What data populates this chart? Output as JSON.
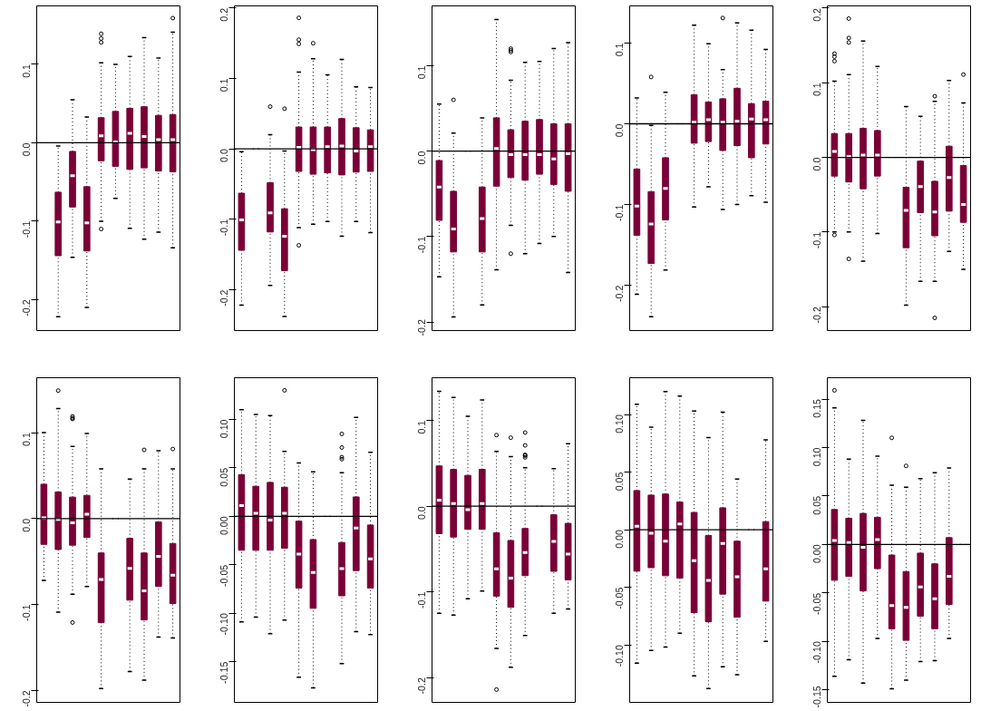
{
  "chart_data": [
    {
      "type": "box",
      "categories": [
        null,
        null,
        null,
        null,
        null,
        null,
        null,
        null,
        null,
        null
      ],
      "ylim": [
        -0.2395,
        0.1746
      ],
      "yticks": [
        {
          "value": -0.2,
          "label": "-0.2"
        },
        {
          "value": -0.1,
          "label": "-0.1"
        },
        {
          "value": 0,
          "label": "0.0"
        },
        {
          "value": 0.1,
          "label": "0.1"
        }
      ],
      "tick_labels": "y",
      "grid": false,
      "ref_lines": [
        {
          "axis": "y",
          "value": 0
        }
      ],
      "series": [
        {
          "color": "#7a0036",
          "boxes": [
            {
              "low": 0,
              "q1": 0,
              "median": 0,
              "q3": 0,
              "high": 0
            },
            {
              "low": -0.222,
              "q1": -0.144,
              "median": -0.101,
              "q3": -0.063,
              "high": -0.004
            },
            {
              "low": -0.146,
              "q1": -0.082,
              "median": -0.042,
              "q3": -0.011,
              "high": 0.055
            },
            {
              "low": -0.21,
              "q1": -0.138,
              "median": -0.102,
              "q3": -0.056,
              "high": 0.033
            },
            {
              "low": -0.1,
              "q1": -0.023,
              "median": 0.009,
              "q3": 0.032,
              "high": 0.102,
              "outliers": [
                0.128,
                0.133,
                0.139,
                -0.11
              ]
            },
            {
              "low": -0.071,
              "q1": -0.03,
              "median": 0.001,
              "q3": 0.04,
              "high": 0.1
            },
            {
              "low": -0.109,
              "q1": -0.034,
              "median": 0.012,
              "q3": 0.044,
              "high": 0.11
            },
            {
              "low": -0.123,
              "q1": -0.032,
              "median": 0.008,
              "q3": 0.046,
              "high": 0.134
            },
            {
              "low": -0.114,
              "q1": -0.036,
              "median": 0.004,
              "q3": 0.035,
              "high": 0.108
            },
            {
              "low": -0.134,
              "q1": -0.037,
              "median": 0.004,
              "q3": 0.036,
              "high": 0.141,
              "outliers": [
                0.159
              ]
            }
          ]
        }
      ]
    },
    {
      "type": "box",
      "categories": [
        null,
        null,
        null,
        null,
        null,
        null,
        null,
        null,
        null,
        null
      ],
      "ylim": [
        -0.258,
        0.203
      ],
      "yticks": [
        {
          "value": -0.2,
          "label": "-0.2"
        },
        {
          "value": -0.1,
          "label": "-0.1"
        },
        {
          "value": 0,
          "label": "0.0"
        },
        {
          "value": 0.1,
          "label": "0.1"
        },
        {
          "value": 0.2,
          "label": "0.2"
        }
      ],
      "tick_labels": "y",
      "grid": false,
      "ref_lines": [
        {
          "axis": "y",
          "value": 0
        }
      ],
      "series": [
        {
          "color": "#7a0036",
          "boxes": [
            {
              "low": -0.222,
              "q1": -0.144,
              "median": -0.101,
              "q3": -0.063,
              "high": -0.004
            },
            {
              "low": 0,
              "q1": 0,
              "median": 0,
              "q3": 0,
              "high": 0
            },
            {
              "low": -0.194,
              "q1": -0.118,
              "median": -0.091,
              "q3": -0.048,
              "high": 0.02,
              "outliers": [
                0.06
              ]
            },
            {
              "low": -0.238,
              "q1": -0.173,
              "median": -0.124,
              "q3": -0.085,
              "high": -0.003,
              "outliers": [
                0.057
              ]
            },
            {
              "low": -0.112,
              "q1": -0.032,
              "median": 0.002,
              "q3": 0.031,
              "high": 0.109,
              "outliers": [
                0.149,
                0.155,
                0.186,
                -0.137
              ]
            },
            {
              "low": -0.107,
              "q1": -0.036,
              "median": -0.001,
              "q3": 0.031,
              "high": 0.128,
              "outliers": [
                0.15
              ]
            },
            {
              "low": -0.103,
              "q1": -0.034,
              "median": 0.003,
              "q3": 0.031,
              "high": 0.105
            },
            {
              "low": -0.124,
              "q1": -0.037,
              "median": 0.004,
              "q3": 0.043,
              "high": 0.127
            },
            {
              "low": -0.103,
              "q1": -0.033,
              "median": -0.003,
              "q3": 0.03,
              "high": 0.088
            },
            {
              "low": -0.119,
              "q1": -0.032,
              "median": 0.003,
              "q3": 0.027,
              "high": 0.087
            }
          ]
        }
      ]
    },
    {
      "type": "box",
      "categories": [
        null,
        null,
        null,
        null,
        null,
        null,
        null,
        null,
        null,
        null
      ],
      "ylim": [
        -0.21,
        0.17
      ],
      "yticks": [
        {
          "value": -0.2,
          "label": "-0.2"
        },
        {
          "value": -0.1,
          "label": "-0.1"
        },
        {
          "value": 0,
          "label": "0.0"
        },
        {
          "value": 0.1,
          "label": "0.1"
        }
      ],
      "tick_labels": "y",
      "grid": false,
      "ref_lines": [
        {
          "axis": "y",
          "value": 0
        }
      ],
      "series": [
        {
          "color": "#7a0036",
          "boxes": [
            {
              "low": -0.147,
              "q1": -0.081,
              "median": -0.042,
              "q3": -0.011,
              "high": 0.055
            },
            {
              "low": -0.194,
              "q1": -0.118,
              "median": -0.091,
              "q3": -0.047,
              "high": 0.021,
              "outliers": [
                0.06
              ]
            },
            {
              "low": 0,
              "q1": 0,
              "median": 0,
              "q3": 0,
              "high": 0
            },
            {
              "low": -0.18,
              "q1": -0.118,
              "median": -0.079,
              "q3": -0.042,
              "high": 0.039
            },
            {
              "low": -0.139,
              "q1": -0.041,
              "median": 0.003,
              "q3": 0.039,
              "high": 0.154
            },
            {
              "low": -0.087,
              "q1": -0.031,
              "median": -0.004,
              "q3": 0.025,
              "high": 0.083,
              "outliers": [
                0.116,
                0.118,
                0.12,
                -0.12
              ]
            },
            {
              "low": -0.12,
              "q1": -0.034,
              "median": -0.004,
              "q3": 0.035,
              "high": 0.104
            },
            {
              "low": -0.108,
              "q1": -0.027,
              "median": -0.004,
              "q3": 0.037,
              "high": 0.105
            },
            {
              "low": -0.1,
              "q1": -0.039,
              "median": -0.009,
              "q3": 0.032,
              "high": 0.12
            },
            {
              "low": -0.142,
              "q1": -0.047,
              "median": -0.003,
              "q3": 0.032,
              "high": 0.127
            }
          ]
        }
      ]
    },
    {
      "type": "box",
      "categories": [
        null,
        null,
        null,
        null,
        null,
        null,
        null,
        null,
        null,
        null
      ],
      "ylim": [
        -0.256,
        0.146
      ],
      "yticks": [
        {
          "value": -0.2,
          "label": "-0.2"
        },
        {
          "value": -0.1,
          "label": "-0.1"
        },
        {
          "value": 0,
          "label": "0.0"
        },
        {
          "value": 0.1,
          "label": "0.1"
        }
      ],
      "tick_labels": "y",
      "grid": false,
      "ref_lines": [
        {
          "axis": "y",
          "value": 0
        }
      ],
      "series": [
        {
          "color": "#7a0036",
          "boxes": [
            {
              "low": -0.211,
              "q1": -0.138,
              "median": -0.102,
              "q3": -0.056,
              "high": 0.032
            },
            {
              "low": -0.239,
              "q1": -0.173,
              "median": -0.124,
              "q3": -0.084,
              "high": -0.002,
              "outliers": [
                0.058
              ]
            },
            {
              "low": -0.181,
              "q1": -0.119,
              "median": -0.08,
              "q3": -0.042,
              "high": 0.039
            },
            {
              "low": 0,
              "q1": 0,
              "median": 0,
              "q3": 0,
              "high": 0
            },
            {
              "low": -0.103,
              "q1": -0.024,
              "median": 0.002,
              "q3": 0.036,
              "high": 0.122
            },
            {
              "low": -0.078,
              "q1": -0.022,
              "median": 0.005,
              "q3": 0.027,
              "high": 0.099
            },
            {
              "low": -0.106,
              "q1": -0.033,
              "median": 0.002,
              "q3": 0.031,
              "high": 0.067,
              "outliers": [
                0.131
              ]
            },
            {
              "low": -0.1,
              "q1": -0.027,
              "median": 0.003,
              "q3": 0.044,
              "high": 0.125
            },
            {
              "low": -0.089,
              "q1": -0.042,
              "median": 0.006,
              "q3": 0.025,
              "high": 0.116
            },
            {
              "low": -0.097,
              "q1": -0.025,
              "median": 0.005,
              "q3": 0.028,
              "high": 0.092
            }
          ]
        }
      ]
    },
    {
      "type": "box",
      "categories": [
        null,
        null,
        null,
        null,
        null,
        null,
        null,
        null,
        null,
        null
      ],
      "ylim": [
        -0.232,
        0.203
      ],
      "yticks": [
        {
          "value": -0.2,
          "label": "-0.2"
        },
        {
          "value": -0.1,
          "label": "-0.1"
        },
        {
          "value": 0,
          "label": "0.0"
        },
        {
          "value": 0.1,
          "label": "0.1"
        },
        {
          "value": 0.2,
          "label": "0.2"
        }
      ],
      "tick_labels": "y",
      "grid": false,
      "ref_lines": [
        {
          "axis": "y",
          "value": 0
        }
      ],
      "series": [
        {
          "color": "#7a0036",
          "boxes": [
            {
              "low": -0.1,
              "q1": -0.025,
              "median": 0.008,
              "q3": 0.032,
              "high": 0.102,
              "outliers": [
                0.129,
                0.135,
                0.139,
                -0.104
              ]
            },
            {
              "low": -0.1,
              "q1": -0.033,
              "median": 0.001,
              "q3": 0.032,
              "high": 0.111,
              "outliers": [
                0.154,
                0.16,
                0.186,
                -0.136
              ]
            },
            {
              "low": -0.139,
              "q1": -0.042,
              "median": 0.003,
              "q3": 0.039,
              "high": 0.156
            },
            {
              "low": -0.102,
              "q1": -0.025,
              "median": 0.003,
              "q3": 0.036,
              "high": 0.122
            },
            {
              "low": 0,
              "q1": 0,
              "median": 0,
              "q3": 0,
              "high": 0
            },
            {
              "low": -0.198,
              "q1": -0.121,
              "median": -0.071,
              "q3": -0.04,
              "high": 0.068
            },
            {
              "low": -0.166,
              "q1": -0.074,
              "median": -0.039,
              "q3": -0.005,
              "high": 0.055
            },
            {
              "low": -0.166,
              "q1": -0.105,
              "median": -0.073,
              "q3": -0.032,
              "high": 0.075,
              "outliers": [
                0.082,
                -0.215
              ]
            },
            {
              "low": -0.126,
              "q1": -0.072,
              "median": -0.027,
              "q3": 0.015,
              "high": 0.103
            },
            {
              "low": -0.15,
              "q1": -0.087,
              "median": -0.063,
              "q3": -0.011,
              "high": 0.073,
              "outliers": [
                0.111
              ]
            }
          ]
        }
      ]
    },
    {
      "type": "box",
      "categories": [
        null,
        null,
        null,
        null,
        null,
        null,
        null,
        null,
        null,
        null
      ],
      "ylim": [
        -0.214,
        0.164
      ],
      "yticks": [
        {
          "value": -0.2,
          "label": "-0.2"
        },
        {
          "value": -0.1,
          "label": "-0.1"
        },
        {
          "value": 0,
          "label": "0.0"
        },
        {
          "value": 0.1,
          "label": "0.1"
        }
      ],
      "tick_labels": "y",
      "grid": false,
      "ref_lines": [
        {
          "axis": "y",
          "value": 0
        }
      ],
      "series": [
        {
          "color": "#7a0036",
          "boxes": [
            {
              "low": -0.072,
              "q1": -0.03,
              "median": 0.001,
              "q3": 0.04,
              "high": 0.1
            },
            {
              "low": -0.109,
              "q1": -0.036,
              "median": -0.001,
              "q3": 0.031,
              "high": 0.128,
              "outliers": [
                0.149
              ]
            },
            {
              "low": -0.088,
              "q1": -0.031,
              "median": -0.005,
              "q3": 0.025,
              "high": 0.084,
              "outliers": [
                0.116,
                0.117,
                0.119,
                -0.121
              ]
            },
            {
              "low": -0.079,
              "q1": -0.022,
              "median": 0.005,
              "q3": 0.027,
              "high": 0.099
            },
            {
              "low": -0.198,
              "q1": -0.121,
              "median": -0.071,
              "q3": -0.04,
              "high": 0.058
            },
            {
              "low": 0,
              "q1": 0,
              "median": 0,
              "q3": 0,
              "high": 0
            },
            {
              "low": -0.178,
              "q1": -0.095,
              "median": -0.058,
              "q3": -0.023,
              "high": 0.046
            },
            {
              "low": -0.188,
              "q1": -0.118,
              "median": -0.084,
              "q3": -0.04,
              "high": 0.058,
              "outliers": [
                0.08
              ]
            },
            {
              "low": -0.138,
              "q1": -0.079,
              "median": -0.044,
              "q3": -0.004,
              "high": 0.079
            },
            {
              "low": -0.139,
              "q1": -0.099,
              "median": -0.066,
              "q3": -0.029,
              "high": 0.058,
              "outliers": [
                0.081
              ]
            }
          ]
        }
      ]
    },
    {
      "type": "box",
      "categories": [
        null,
        null,
        null,
        null,
        null,
        null,
        null,
        null,
        null,
        null
      ],
      "ylim": [
        -0.192,
        0.143
      ],
      "yticks": [
        {
          "value": -0.15,
          "label": "-0.15"
        },
        {
          "value": -0.1,
          "label": "-0.10"
        },
        {
          "value": -0.05,
          "label": "-0.05"
        },
        {
          "value": 0,
          "label": "0.00"
        },
        {
          "value": 0.05,
          "label": "0.05"
        },
        {
          "value": 0.1,
          "label": "0.10"
        }
      ],
      "tick_labels": "y",
      "grid": false,
      "ref_lines": [
        {
          "axis": "y",
          "value": 0
        }
      ],
      "series": [
        {
          "color": "#7a0036",
          "boxes": [
            {
              "low": -0.109,
              "q1": -0.035,
              "median": 0.011,
              "q3": 0.043,
              "high": 0.11
            },
            {
              "low": -0.104,
              "q1": -0.035,
              "median": 0.003,
              "q3": 0.031,
              "high": 0.105
            },
            {
              "low": -0.121,
              "q1": -0.035,
              "median": -0.004,
              "q3": 0.035,
              "high": 0.104
            },
            {
              "low": -0.107,
              "q1": -0.033,
              "median": 0.003,
              "q3": 0.03,
              "high": 0.067,
              "outliers": [
                0.13
              ]
            },
            {
              "low": -0.166,
              "q1": -0.074,
              "median": -0.039,
              "q3": -0.005,
              "high": 0.055
            },
            {
              "low": -0.177,
              "q1": -0.095,
              "median": -0.058,
              "q3": -0.024,
              "high": 0.046
            },
            {
              "low": 0,
              "q1": 0,
              "median": 0,
              "q3": 0,
              "high": 0
            },
            {
              "low": -0.152,
              "q1": -0.082,
              "median": -0.054,
              "q3": -0.027,
              "high": 0.045,
              "outliers": [
                0.059,
                0.061,
                0.071,
                0.085
              ]
            },
            {
              "low": -0.119,
              "q1": -0.056,
              "median": -0.012,
              "q3": 0.02,
              "high": 0.102
            },
            {
              "low": -0.122,
              "q1": -0.074,
              "median": -0.044,
              "q3": -0.009,
              "high": 0.066
            }
          ]
        }
      ]
    },
    {
      "type": "box",
      "categories": [
        null,
        null,
        null,
        null,
        null,
        null,
        null,
        null,
        null,
        null
      ],
      "ylim": [
        -0.229,
        0.15
      ],
      "yticks": [
        {
          "value": -0.2,
          "label": "-0.2"
        },
        {
          "value": -0.1,
          "label": "-0.1"
        },
        {
          "value": 0,
          "label": "0.0"
        },
        {
          "value": 0.1,
          "label": "0.1"
        }
      ],
      "tick_labels": "y",
      "grid": false,
      "ref_lines": [
        {
          "axis": "y",
          "value": 0
        }
      ],
      "series": [
        {
          "color": "#7a0036",
          "boxes": [
            {
              "low": -0.125,
              "q1": -0.032,
              "median": 0.007,
              "q3": 0.047,
              "high": 0.134
            },
            {
              "low": -0.127,
              "q1": -0.036,
              "median": 0.003,
              "q3": 0.043,
              "high": 0.127
            },
            {
              "low": -0.108,
              "q1": -0.027,
              "median": -0.004,
              "q3": 0.036,
              "high": 0.105
            },
            {
              "low": -0.099,
              "q1": -0.027,
              "median": 0.003,
              "q3": 0.043,
              "high": 0.124
            },
            {
              "low": -0.166,
              "q1": -0.105,
              "median": -0.073,
              "q3": -0.031,
              "high": 0.064,
              "outliers": [
                0.083,
                -0.214
              ]
            },
            {
              "low": -0.188,
              "q1": -0.118,
              "median": -0.084,
              "q3": -0.04,
              "high": 0.058,
              "outliers": [
                0.08
              ]
            },
            {
              "low": -0.151,
              "q1": -0.081,
              "median": -0.054,
              "q3": -0.026,
              "high": 0.045,
              "outliers": [
                0.057,
                0.059,
                0.06,
                0.071,
                0.086
              ]
            },
            {
              "low": 0,
              "q1": 0,
              "median": 0,
              "q3": 0,
              "high": 0
            },
            {
              "low": -0.125,
              "q1": -0.076,
              "median": -0.041,
              "q3": -0.01,
              "high": 0.044
            },
            {
              "low": -0.12,
              "q1": -0.086,
              "median": -0.056,
              "q3": -0.02,
              "high": 0.073
            }
          ]
        }
      ]
    },
    {
      "type": "box",
      "categories": [
        null,
        null,
        null,
        null,
        null,
        null,
        null,
        null,
        null,
        null
      ],
      "ylim": [
        -0.15,
        0.132
      ],
      "yticks": [
        {
          "value": -0.1,
          "label": "-0.10"
        },
        {
          "value": -0.05,
          "label": "-0.05"
        },
        {
          "value": 0,
          "label": "0.00"
        },
        {
          "value": 0.05,
          "label": "0.05"
        },
        {
          "value": 0.1,
          "label": "0.10"
        }
      ],
      "tick_labels": "y",
      "grid": false,
      "ref_lines": [
        {
          "axis": "y",
          "value": 0
        }
      ],
      "series": [
        {
          "color": "#7a0036",
          "boxes": [
            {
              "low": -0.116,
              "q1": -0.036,
              "median": 0.003,
              "q3": 0.034,
              "high": 0.109
            },
            {
              "low": -0.105,
              "q1": -0.033,
              "median": -0.003,
              "q3": 0.03,
              "high": 0.089
            },
            {
              "low": -0.102,
              "q1": -0.04,
              "median": -0.01,
              "q3": 0.031,
              "high": 0.12
            },
            {
              "low": -0.09,
              "q1": -0.042,
              "median": 0.005,
              "q3": 0.024,
              "high": 0.116
            },
            {
              "low": -0.127,
              "q1": -0.072,
              "median": -0.027,
              "q3": 0.015,
              "high": 0.103
            },
            {
              "low": -0.138,
              "q1": -0.08,
              "median": -0.044,
              "q3": -0.005,
              "high": 0.08
            },
            {
              "low": -0.119,
              "q1": -0.056,
              "median": -0.012,
              "q3": 0.019,
              "high": 0.102
            },
            {
              "low": -0.126,
              "q1": -0.076,
              "median": -0.041,
              "q3": -0.01,
              "high": 0.044
            },
            {
              "low": 0,
              "q1": 0,
              "median": 0,
              "q3": 0,
              "high": 0
            },
            {
              "low": -0.097,
              "q1": -0.062,
              "median": -0.034,
              "q3": 0.007,
              "high": 0.078
            }
          ]
        }
      ]
    },
    {
      "type": "box",
      "categories": [
        null,
        null,
        null,
        null,
        null,
        null,
        null,
        null,
        null,
        null
      ],
      "ylim": [
        -0.163,
        0.172
      ],
      "yticks": [
        {
          "value": -0.15,
          "label": "-0.15"
        },
        {
          "value": -0.1,
          "label": "-0.10"
        },
        {
          "value": -0.05,
          "label": "-0.05"
        },
        {
          "value": 0,
          "label": "0.00"
        },
        {
          "value": 0.05,
          "label": "0.05"
        },
        {
          "value": 0.1,
          "label": "0.10"
        },
        {
          "value": 0.15,
          "label": "0.15"
        }
      ],
      "tick_labels": "y",
      "grid": false,
      "ref_lines": [
        {
          "axis": "y",
          "value": 0
        }
      ],
      "series": [
        {
          "color": "#7a0036",
          "boxes": [
            {
              "low": -0.136,
              "q1": -0.037,
              "median": 0.004,
              "q3": 0.036,
              "high": 0.141,
              "outliers": [
                0.159
              ]
            },
            {
              "low": -0.119,
              "q1": -0.033,
              "median": 0.002,
              "q3": 0.027,
              "high": 0.088
            },
            {
              "low": -0.143,
              "q1": -0.048,
              "median": -0.003,
              "q3": 0.032,
              "high": 0.128
            },
            {
              "low": -0.097,
              "q1": -0.025,
              "median": 0.005,
              "q3": 0.028,
              "high": 0.091
            },
            {
              "low": -0.149,
              "q1": -0.087,
              "median": -0.063,
              "q3": -0.011,
              "high": 0.061,
              "outliers": [
                0.11
              ]
            },
            {
              "low": -0.14,
              "q1": -0.099,
              "median": -0.065,
              "q3": -0.028,
              "high": 0.059,
              "outliers": [
                0.081
              ]
            },
            {
              "low": -0.121,
              "q1": -0.074,
              "median": -0.044,
              "q3": -0.009,
              "high": 0.068
            },
            {
              "low": -0.12,
              "q1": -0.087,
              "median": -0.056,
              "q3": -0.02,
              "high": 0.074
            },
            {
              "low": -0.097,
              "q1": -0.062,
              "median": -0.033,
              "q3": 0.007,
              "high": 0.079
            },
            {
              "low": 0,
              "q1": 0,
              "median": 0,
              "q3": 0,
              "high": 0
            }
          ]
        }
      ]
    }
  ]
}
